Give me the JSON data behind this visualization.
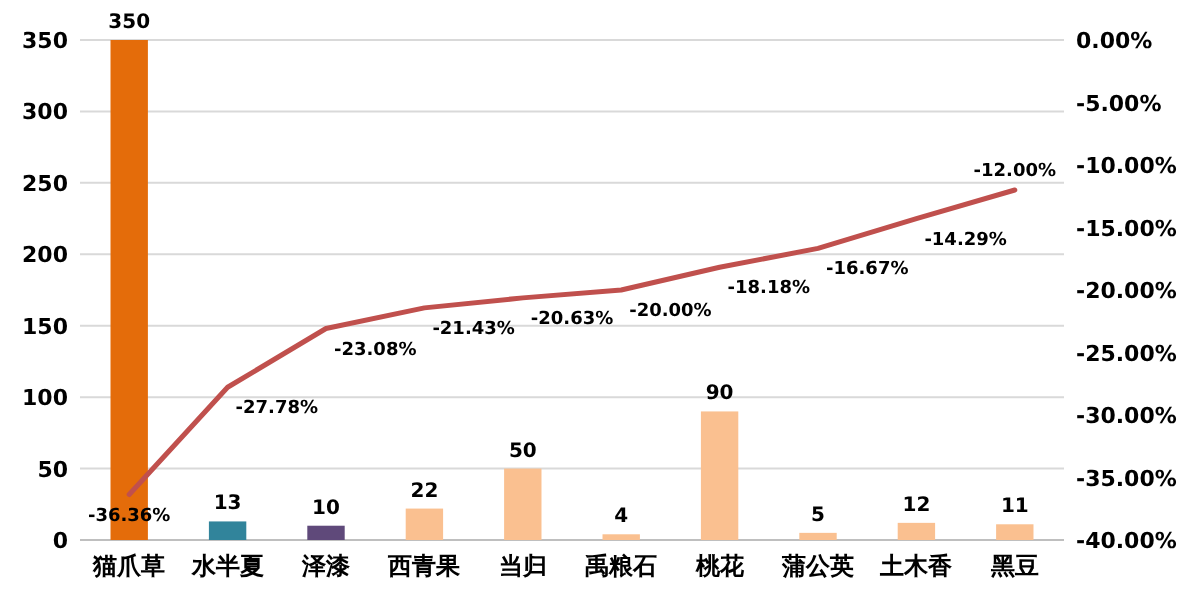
{
  "chart_data": {
    "type": "bar",
    "categories": [
      "猫爪草",
      "水半夏",
      "泽漆",
      "西青果",
      "当归",
      "禹粮石",
      "桃花",
      "蒲公英",
      "土木香",
      "黑豆"
    ],
    "series": [
      {
        "colors": [
          "#e46c0a",
          "#31849b",
          "#5f497a",
          "#fac090",
          "#fac090",
          "#fac090",
          "#fac090",
          "#fac090",
          "#fac090",
          "#fac090"
        ],
        "values": [
          350,
          13,
          10,
          22,
          50,
          4,
          90,
          5,
          12,
          11
        ],
        "value_labels": [
          "350",
          "13",
          "10",
          "22",
          "50",
          "4",
          "90",
          "5",
          "12",
          "11"
        ]
      },
      {
        "type": "line",
        "axis": "y2",
        "color": "#c0504d",
        "values": [
          -36.36,
          -27.78,
          -23.08,
          -21.43,
          -20.63,
          -20.0,
          -18.18,
          -16.67,
          -14.29,
          -12.0
        ],
        "value_labels": [
          "-36.36%",
          "-27.78%",
          "-23.08%",
          "-21.43%",
          "-20.63%",
          "-20.00%",
          "-18.18%",
          "-16.67%",
          "-14.29%",
          "-12.00%"
        ]
      }
    ],
    "ylim": [
      0,
      350
    ],
    "yticks": [
      0,
      50,
      100,
      150,
      200,
      250,
      300,
      350
    ],
    "y2lim": [
      -40,
      0
    ],
    "y2ticks": [
      {
        "value": 0,
        "label": "0.00%"
      },
      {
        "value": -5,
        "label": "-5.00%"
      },
      {
        "value": -10,
        "label": "-10.00%"
      },
      {
        "value": -15,
        "label": "-15.00%"
      },
      {
        "value": -20,
        "label": "-20.00%"
      },
      {
        "value": -25,
        "label": "-25.00%"
      },
      {
        "value": -30,
        "label": "-30.00%"
      },
      {
        "value": -35,
        "label": "-35.00%"
      },
      {
        "value": -40,
        "label": "-40.00%"
      }
    ],
    "grid": "y"
  }
}
